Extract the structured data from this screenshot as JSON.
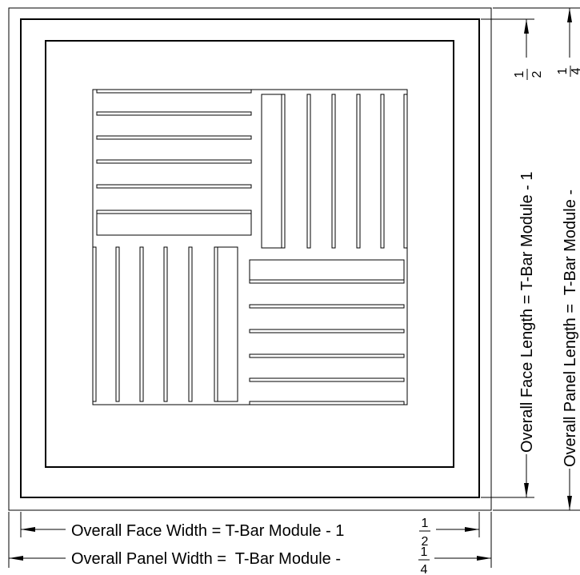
{
  "dimensions": {
    "face_width": {
      "prefix": "Overall Face Width = T-Bar Module - 1",
      "fraction": {
        "numerator": "1",
        "denominator": "2"
      }
    },
    "panel_width": {
      "prefix": "Overall Panel Width =  T-Bar Module -",
      "fraction": {
        "numerator": "1",
        "denominator": "4"
      }
    },
    "face_length": {
      "prefix": "Overall Face Length = T-Bar Module - 1",
      "fraction": {
        "numerator": "1",
        "denominator": "2"
      }
    },
    "panel_length": {
      "prefix": "Overall Panel Length =  T-Bar Module -",
      "fraction": {
        "numerator": "1",
        "denominator": "4"
      }
    }
  }
}
